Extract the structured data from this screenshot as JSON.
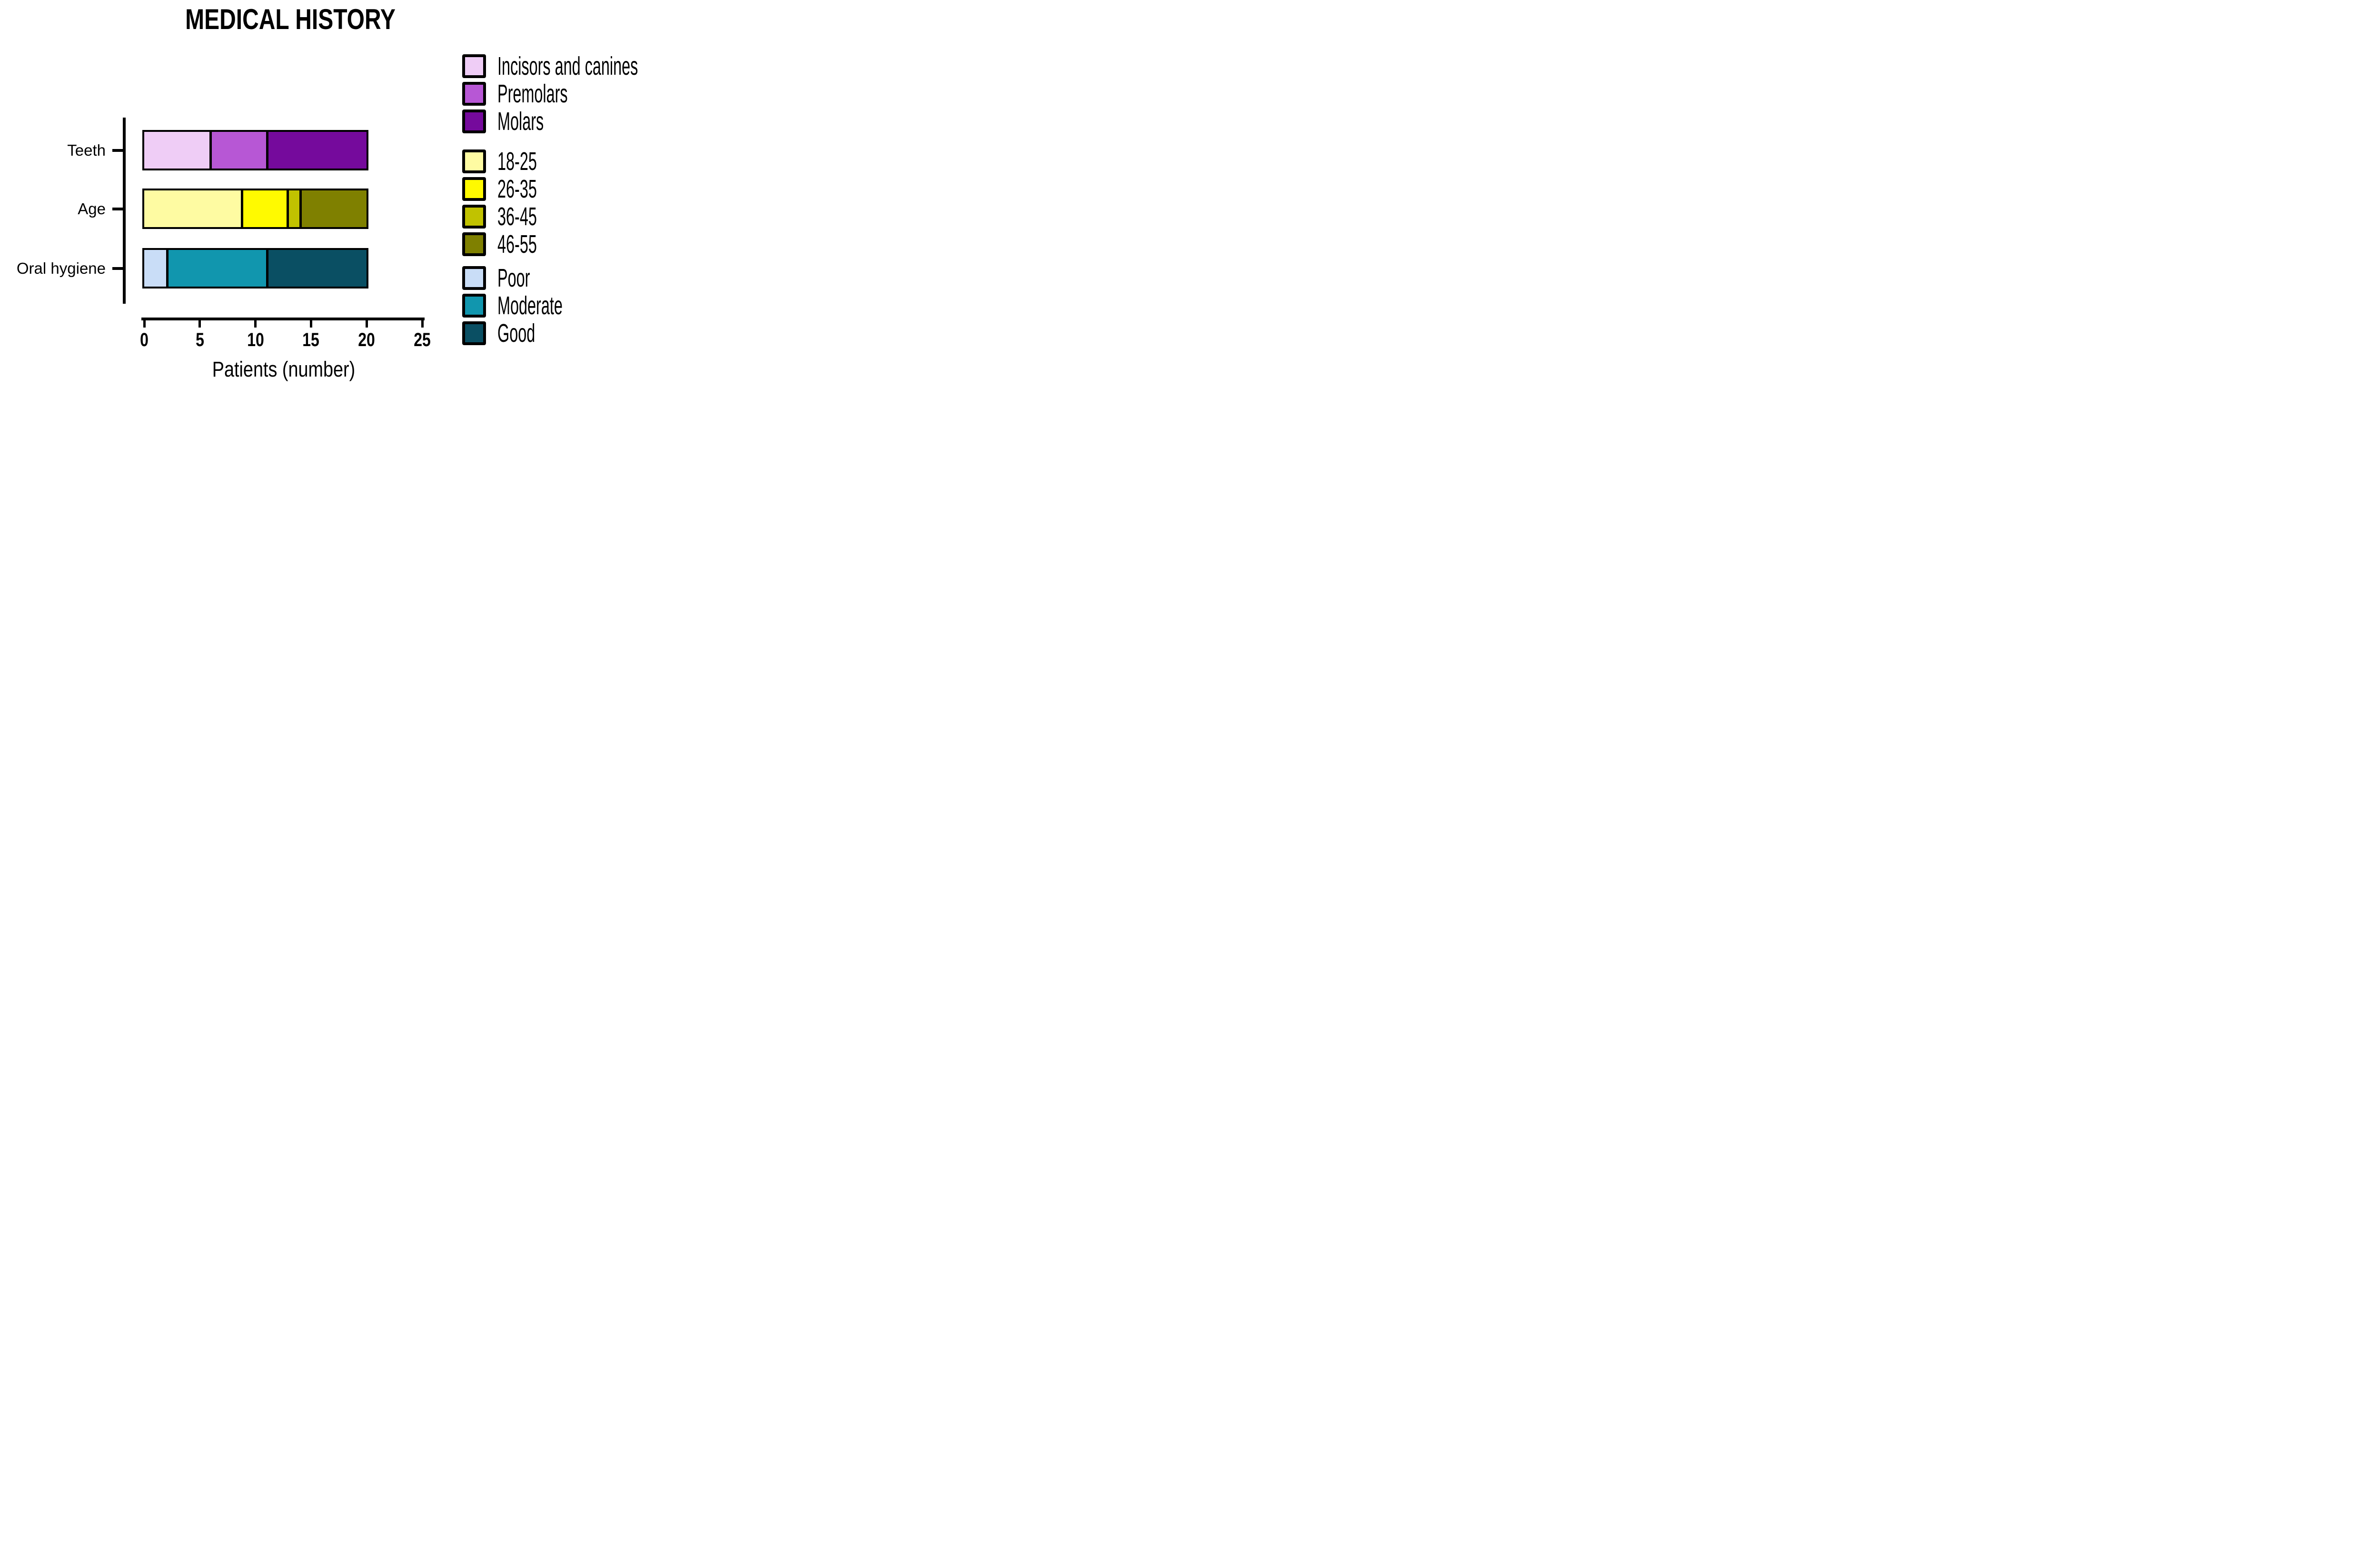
{
  "title": "MEDICAL HISTORY",
  "x_axis": {
    "label": "Patients (number)",
    "min": 0,
    "max": 25,
    "tick_values": [
      0,
      5,
      10,
      15,
      20,
      25
    ],
    "tick_labels": [
      "0",
      "5",
      "10",
      "15",
      "20",
      "25"
    ]
  },
  "y_axis": {
    "categories": [
      "Teeth",
      "Age",
      "Oral hygiene"
    ]
  },
  "chart_data": {
    "type": "bar",
    "orientation": "horizontal",
    "stacked": true,
    "title": "MEDICAL HISTORY",
    "xlabel": "Patients (number)",
    "xlim": [
      0,
      25
    ],
    "grid": false,
    "legend_position": "right",
    "bar_outline_color": "#000000",
    "categories": [
      "Teeth",
      "Age",
      "Oral hygiene"
    ],
    "series_groups": [
      {
        "category": "Teeth",
        "total": 20,
        "segments": [
          {
            "label": "Incisors and canines",
            "value": 6,
            "color": "#EFCDF6"
          },
          {
            "label": "Premolars",
            "value": 5,
            "color": "#B757D5"
          },
          {
            "label": "Molars",
            "value": 9,
            "color": "#750A9C"
          }
        ]
      },
      {
        "category": "Age",
        "total": 20,
        "segments": [
          {
            "label": "18-25",
            "value": 9,
            "color": "#FEFBA2"
          },
          {
            "label": "26-35",
            "value": 4,
            "color": "#FFFA00"
          },
          {
            "label": "36-45",
            "value": 1,
            "color": "#C1C200"
          },
          {
            "label": "46-55",
            "value": 6,
            "color": "#7F8000"
          }
        ]
      },
      {
        "category": "Oral hygiene",
        "total": 20,
        "segments": [
          {
            "label": "Poor",
            "value": 2,
            "color": "#C9DDF7"
          },
          {
            "label": "Moderate",
            "value": 9,
            "color": "#1196AE"
          },
          {
            "label": "Good",
            "value": 9,
            "color": "#0A4F63"
          }
        ]
      }
    ]
  },
  "legend": {
    "groups": [
      {
        "entries": [
          {
            "label": "Incisors and canines",
            "color": "#EFCDF6"
          },
          {
            "label": "Premolars",
            "color": "#B757D5"
          },
          {
            "label": "Molars",
            "color": "#750A9C"
          }
        ]
      },
      {
        "entries": [
          {
            "label": "18-25",
            "color": "#FEFBA2"
          },
          {
            "label": "26-35",
            "color": "#FFFA00"
          },
          {
            "label": "36-45",
            "color": "#C1C200"
          },
          {
            "label": "46-55",
            "color": "#7F8000"
          }
        ]
      },
      {
        "entries": [
          {
            "label": "Poor",
            "color": "#C9DDF7"
          },
          {
            "label": "Moderate",
            "color": "#1196AE"
          },
          {
            "label": "Good",
            "color": "#0A4F63"
          }
        ]
      }
    ]
  }
}
